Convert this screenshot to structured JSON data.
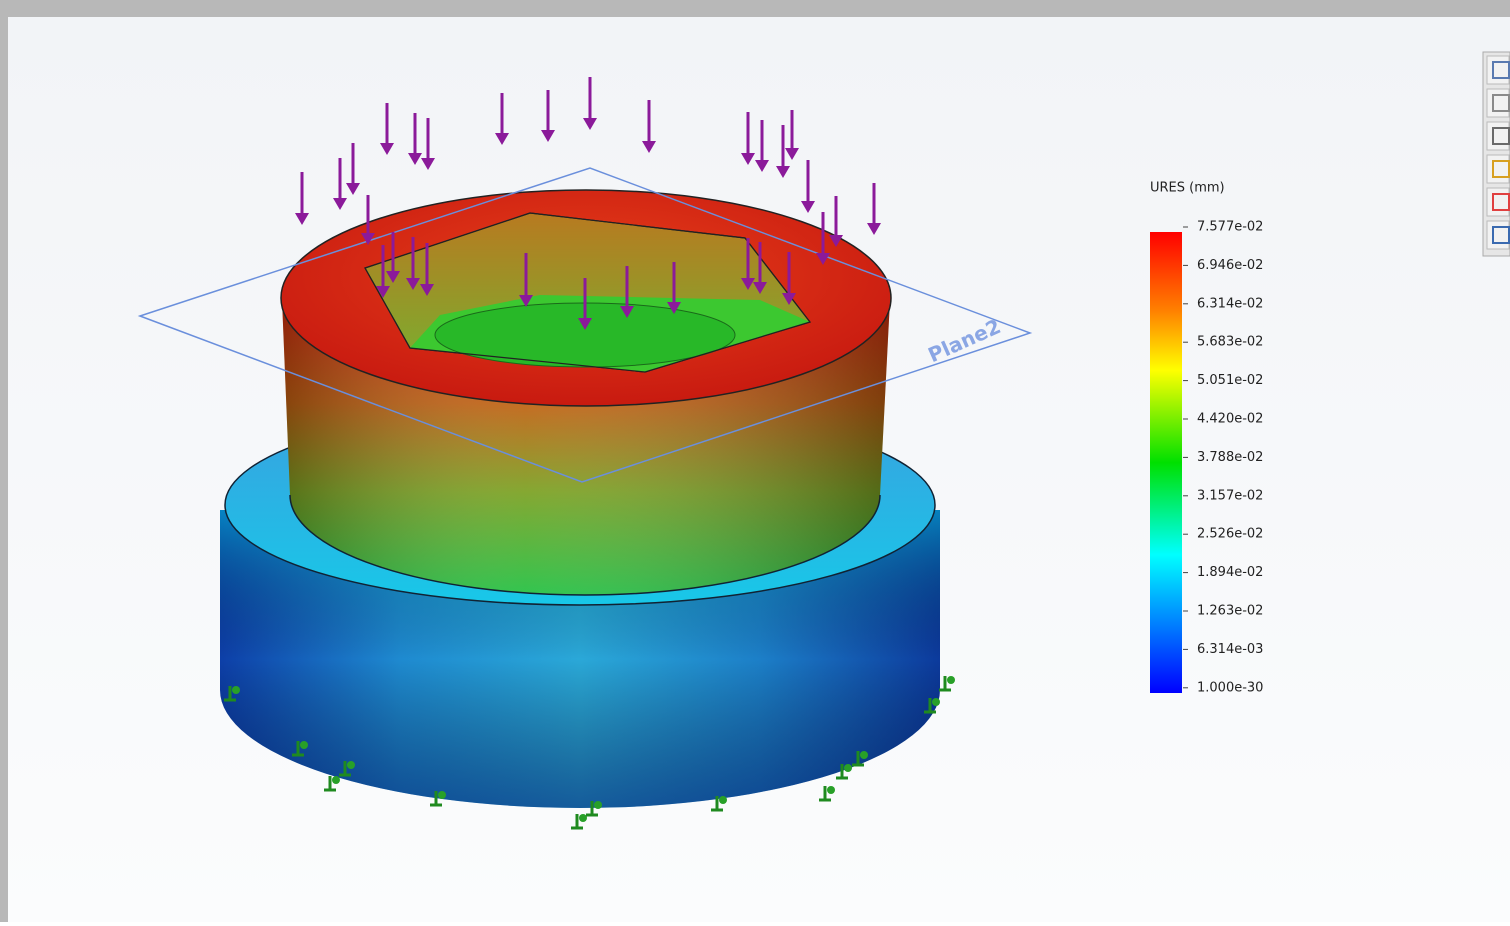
{
  "legend": {
    "title": "URES (mm)",
    "labels": [
      "7.577e-02",
      "6.946e-02",
      "6.314e-02",
      "5.683e-02",
      "5.051e-02",
      "4.420e-02",
      "3.788e-02",
      "3.157e-02",
      "2.526e-02",
      "1.894e-02",
      "1.263e-02",
      "6.314e-03",
      "1.000e-30"
    ]
  },
  "plane": {
    "label": "Plane2"
  }
}
